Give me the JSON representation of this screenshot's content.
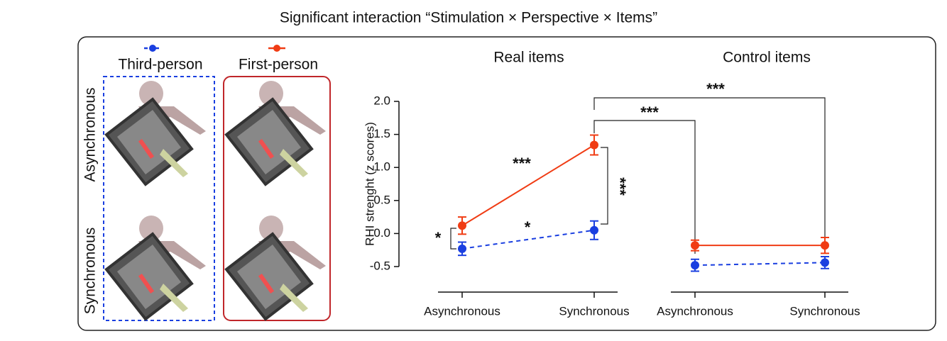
{
  "title": "Significant interaction “Stimulation × Perspective × Items”",
  "illustration": {
    "rows": [
      "Asynchronous",
      "Synchronous"
    ]
  },
  "chart_data": [
    {
      "type": "line",
      "title": "Real items",
      "ylabel": "RHI strenght (z scores)",
      "categories": [
        "Asynchronous",
        "Synchronous"
      ],
      "series": [
        {
          "name": "First-person",
          "color": "#f03c14",
          "line_style": "solid",
          "values": [
            0.12,
            1.34
          ],
          "errors": [
            0.13,
            0.15
          ]
        },
        {
          "name": "Third-person",
          "color": "#1a3fe0",
          "line_style": "dashed",
          "values": [
            -0.23,
            0.05
          ],
          "errors": [
            0.1,
            0.14
          ]
        }
      ],
      "ylim": [
        -0.5,
        2.0
      ],
      "yticks": [
        {
          "value": -0.5,
          "label": "-0.5"
        },
        {
          "value": 0,
          "label": "0.0"
        },
        {
          "value": 0.5,
          "label": "0.5"
        },
        {
          "value": 1,
          "label": "1.0"
        },
        {
          "value": 1.5,
          "label": "1.5"
        },
        {
          "value": 2,
          "label": "2.0"
        }
      ],
      "annotations": [
        "***",
        "*",
        "*",
        "***",
        "***",
        "***"
      ]
    },
    {
      "type": "line",
      "title": "Control items",
      "categories": [
        "Asynchronous",
        "Synchronous"
      ],
      "series": [
        {
          "name": "First-person",
          "color": "#f03c14",
          "line_style": "solid",
          "values": [
            -0.18,
            -0.18
          ],
          "errors": [
            0.08,
            0.12
          ]
        },
        {
          "name": "Third-person",
          "color": "#1a3fe0",
          "line_style": "dashed",
          "values": [
            -0.48,
            -0.44
          ],
          "errors": [
            0.09,
            0.09
          ]
        }
      ],
      "ylim": [
        -0.5,
        2.0
      ]
    }
  ]
}
